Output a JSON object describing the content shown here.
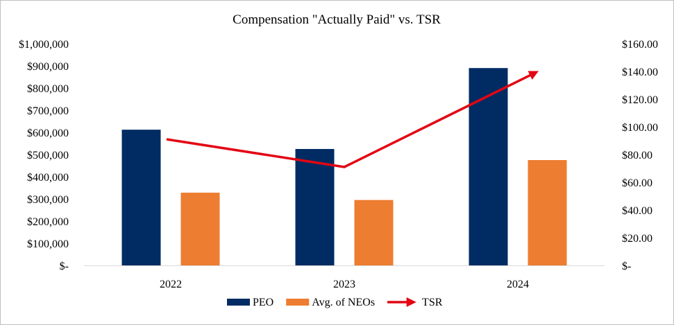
{
  "chart_data": {
    "type": "bar",
    "title": "Compensation \"Actually Paid\" vs. TSR",
    "categories": [
      "2022",
      "2023",
      "2024"
    ],
    "series": [
      {
        "name": "PEO",
        "type": "bar",
        "axis": "left",
        "color": "#002c63",
        "values": [
          612000,
          525000,
          890000
        ]
      },
      {
        "name": "Avg. of NEOs",
        "type": "bar",
        "axis": "left",
        "color": "#ed7d31",
        "values": [
          328000,
          295000,
          475000
        ]
      },
      {
        "name": "TSR",
        "type": "line",
        "axis": "right",
        "color": "#e30613",
        "marker": "arrow-end",
        "values": [
          91,
          71,
          139
        ]
      }
    ],
    "y_left": {
      "ylim": [
        0,
        1000000
      ],
      "tick_labels": [
        "$-",
        "$100,000",
        "$200,000",
        "$300,000",
        "$400,000",
        "$500,000",
        "$600,000",
        "$700,000",
        "$800,000",
        "$900,000",
        "$1,000,000"
      ]
    },
    "y_right": {
      "ylim": [
        0,
        160
      ],
      "tick_labels": [
        "$-",
        "$20.00",
        "$40.00",
        "$60.00",
        "$80.00",
        "$100.00",
        "$120.00",
        "$140.00",
        "$160.00"
      ]
    },
    "grid": false,
    "legend_position": "bottom"
  }
}
